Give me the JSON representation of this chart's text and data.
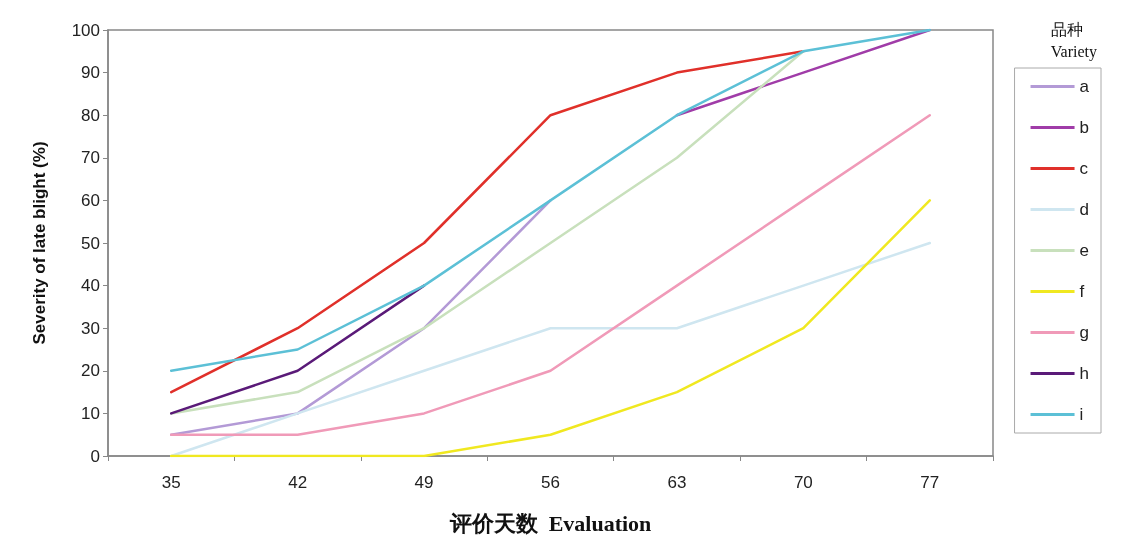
{
  "chart_data": {
    "type": "line",
    "xlabel": "评价天数  Evaluation",
    "ylabel": "Severity of late blight (%)",
    "legend_title": "品种\nVariety",
    "categories": [
      "35",
      "42",
      "49",
      "56",
      "63",
      "70",
      "77"
    ],
    "ylim": [
      0,
      100
    ],
    "yticks": [
      0,
      10,
      20,
      30,
      40,
      50,
      60,
      70,
      80,
      90,
      100
    ],
    "grid": false,
    "legend": "right",
    "marker": "none",
    "line_style": "solid",
    "series": [
      {
        "name": "a",
        "color": "#b39ad6",
        "values": [
          5,
          10,
          30,
          60,
          null,
          null,
          null
        ]
      },
      {
        "name": "b",
        "color": "#a03ca8",
        "values": [
          null,
          null,
          null,
          null,
          80,
          90,
          100
        ]
      },
      {
        "name": "c",
        "color": "#e0302a",
        "values": [
          15,
          30,
          50,
          80,
          90,
          95,
          null
        ]
      },
      {
        "name": "d",
        "color": "#cfe6f0",
        "values": [
          0,
          10,
          20,
          30,
          30,
          40,
          50
        ]
      },
      {
        "name": "e",
        "color": "#c8e0bc",
        "values": [
          10,
          15,
          30,
          50,
          70,
          95,
          null
        ]
      },
      {
        "name": "f",
        "color": "#f0e820",
        "values": [
          0,
          0,
          0,
          5,
          15,
          30,
          60
        ]
      },
      {
        "name": "g",
        "color": "#f09ab8",
        "values": [
          5,
          5,
          10,
          20,
          40,
          60,
          80
        ]
      },
      {
        "name": "h",
        "color": "#5a1a78",
        "values": [
          10,
          20,
          40,
          null,
          null,
          null,
          null
        ]
      },
      {
        "name": "i",
        "color": "#5cc0d6",
        "values": [
          20,
          25,
          40,
          60,
          80,
          95,
          100
        ]
      }
    ]
  }
}
